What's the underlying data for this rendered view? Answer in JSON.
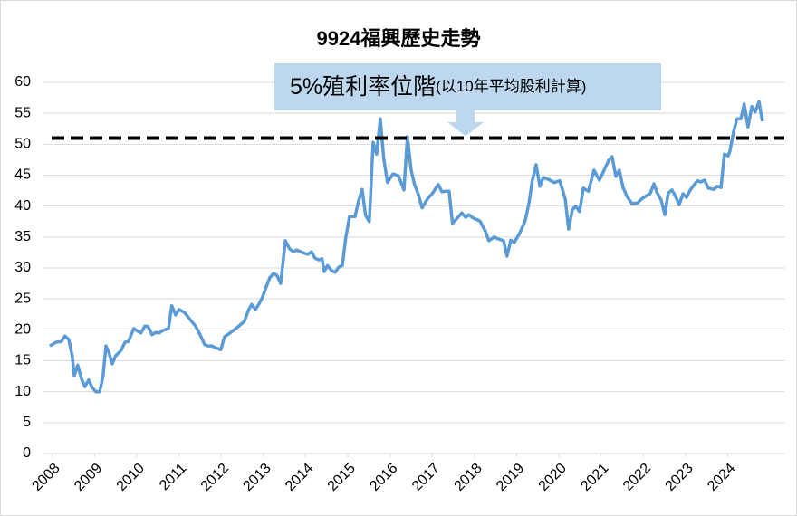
{
  "chart_data": {
    "type": "line",
    "title": "9924福興歷史走勢",
    "x": [
      2007.94,
      2008.09,
      2008.21,
      2008.3,
      2008.39,
      2008.47,
      2008.52,
      2008.6,
      2008.69,
      2008.77,
      2008.86,
      2008.94,
      2009.03,
      2009.12,
      2009.2,
      2009.27,
      2009.33,
      2009.42,
      2009.5,
      2009.63,
      2009.72,
      2009.8,
      2009.93,
      2010.02,
      2010.1,
      2010.19,
      2010.27,
      2010.36,
      2010.45,
      2010.53,
      2010.62,
      2010.75,
      2010.83,
      2010.92,
      2011.0,
      2011.13,
      2011.26,
      2011.39,
      2011.48,
      2011.61,
      2011.69,
      2011.78,
      2011.86,
      2011.99,
      2012.08,
      2012.21,
      2012.29,
      2012.42,
      2012.55,
      2012.64,
      2012.72,
      2012.81,
      2012.89,
      2012.98,
      2013.06,
      2013.15,
      2013.24,
      2013.32,
      2013.41,
      2013.52,
      2013.62,
      2013.71,
      2013.79,
      2013.92,
      2014.05,
      2014.14,
      2014.22,
      2014.31,
      2014.39,
      2014.44,
      2014.52,
      2014.61,
      2014.7,
      2014.78,
      2014.87,
      2014.95,
      2015.04,
      2015.17,
      2015.25,
      2015.34,
      2015.42,
      2015.51,
      2015.6,
      2015.68,
      2015.77,
      2015.85,
      2015.94,
      2016.07,
      2016.2,
      2016.33,
      2016.41,
      2016.5,
      2016.58,
      2016.67,
      2016.76,
      2016.88,
      2017.01,
      2017.14,
      2017.23,
      2017.31,
      2017.4,
      2017.48,
      2017.61,
      2017.7,
      2017.79,
      2017.87,
      2017.96,
      2018.13,
      2018.26,
      2018.34,
      2018.47,
      2018.56,
      2018.69,
      2018.77,
      2018.86,
      2018.94,
      2019.07,
      2019.2,
      2019.29,
      2019.37,
      2019.46,
      2019.55,
      2019.63,
      2019.76,
      2019.89,
      2020.02,
      2020.1,
      2020.15,
      2020.23,
      2020.32,
      2020.4,
      2020.49,
      2020.58,
      2020.7,
      2020.83,
      2020.96,
      2021.05,
      2021.18,
      2021.26,
      2021.35,
      2021.43,
      2021.52,
      2021.61,
      2021.73,
      2021.86,
      2021.95,
      2022.08,
      2022.16,
      2022.25,
      2022.33,
      2022.42,
      2022.51,
      2022.59,
      2022.68,
      2022.76,
      2022.85,
      2022.94,
      2023.02,
      2023.11,
      2023.19,
      2023.28,
      2023.36,
      2023.45,
      2023.54,
      2023.67,
      2023.75,
      2023.84,
      2023.92,
      2024.01,
      2024.05,
      2024.14,
      2024.22,
      2024.31,
      2024.39,
      2024.48,
      2024.57,
      2024.65,
      2024.74,
      2024.82
    ],
    "values": [
      17.4,
      18.0,
      18.1,
      19.0,
      18.4,
      15.8,
      12.6,
      14.3,
      12.1,
      10.8,
      11.9,
      10.7,
      10.0,
      10.0,
      12.4,
      17.4,
      16.5,
      14.5,
      15.8,
      16.7,
      18.0,
      18.1,
      20.2,
      19.8,
      19.5,
      20.6,
      20.5,
      19.2,
      19.6,
      19.5,
      19.9,
      20.2,
      23.9,
      22.4,
      23.3,
      22.8,
      21.7,
      20.6,
      19.5,
      17.6,
      17.4,
      17.4,
      17.1,
      16.8,
      18.9,
      19.5,
      19.9,
      20.6,
      21.4,
      23.1,
      24.1,
      23.3,
      24.1,
      25.3,
      26.8,
      28.4,
      29.1,
      28.8,
      27.5,
      34.4,
      33.1,
      32.6,
      32.9,
      32.5,
      32.2,
      32.6,
      31.6,
      31.3,
      31.5,
      29.4,
      30.4,
      29.6,
      29.3,
      30.1,
      30.4,
      34.8,
      38.3,
      38.3,
      40.7,
      42.7,
      38.5,
      37.5,
      50.3,
      48.4,
      54.1,
      47.7,
      43.8,
      45.2,
      44.9,
      42.6,
      51.2,
      45.8,
      43.5,
      41.9,
      39.7,
      41.1,
      42.1,
      43.5,
      42.3,
      42.4,
      42.4,
      37.2,
      38.2,
      38.9,
      38.2,
      38.6,
      38.1,
      37.6,
      35.9,
      34.4,
      35.0,
      34.7,
      34.4,
      31.9,
      34.5,
      34.1,
      35.6,
      37.6,
      40.4,
      44.1,
      46.7,
      43.2,
      44.6,
      44.3,
      43.8,
      44.1,
      42.3,
      41.1,
      36.3,
      39.4,
      40.0,
      39.1,
      42.9,
      42.4,
      45.8,
      44.2,
      45.5,
      47.4,
      48.0,
      44.8,
      45.8,
      43.0,
      41.6,
      40.4,
      40.5,
      41.1,
      41.7,
      42.0,
      43.6,
      42.1,
      41.0,
      38.6,
      42.1,
      42.6,
      41.6,
      40.2,
      42.0,
      41.4,
      42.6,
      43.3,
      44.1,
      43.9,
      44.2,
      42.9,
      42.7,
      43.2,
      43.0,
      48.4,
      48.1,
      48.9,
      52.1,
      54.1,
      54.1,
      56.5,
      52.8,
      56.1,
      55.2,
      56.9,
      53.7
    ],
    "color": "#5b9bd5",
    "xlim": [
      2007.79,
      2025.34
    ],
    "xticks": [
      2008,
      2009,
      2010,
      2011,
      2012,
      2013,
      2014,
      2015,
      2016,
      2017,
      2018,
      2019,
      2020,
      2021,
      2022,
      2023,
      2024
    ],
    "ylim": [
      0,
      60
    ],
    "yticks": [
      0,
      5,
      10,
      15,
      20,
      25,
      30,
      35,
      40,
      45,
      50,
      55,
      60
    ],
    "grid": true,
    "reference_line": 51,
    "annotation": {
      "text": "5%殖利率位階",
      "note": "(以10年平均股利計算)",
      "x": 2017.79
    }
  }
}
